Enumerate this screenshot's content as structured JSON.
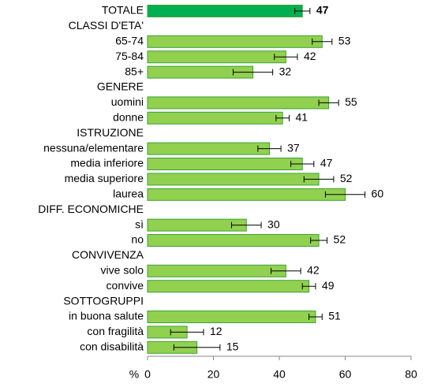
{
  "chart_data": {
    "type": "hbar",
    "categories": [
      "TOTALE",
      "CLASSI D'ETA'",
      "65-74",
      "75-84",
      "85+",
      "GENERE",
      "uomini",
      "donne",
      "ISTRUZIONE",
      "nessuna/elementare",
      "media inferiore",
      "media superiore",
      "laurea",
      "DIFF. ECONOMICHE",
      "sì",
      "no",
      "CONVIVENZA",
      "vive solo",
      "convive",
      "SOTTOGRUPPI",
      "in buona salute",
      "con fragilità",
      "con disabilità"
    ],
    "values": [
      47,
      null,
      53,
      42,
      32,
      null,
      55,
      41,
      null,
      37,
      47,
      52,
      60,
      null,
      30,
      52,
      null,
      42,
      49,
      null,
      51,
      12,
      15
    ],
    "errors": [
      2.3,
      null,
      3,
      3.5,
      6,
      null,
      3,
      2,
      null,
      3.5,
      3.5,
      4.5,
      6,
      null,
      4.5,
      2.5,
      null,
      4.5,
      2,
      null,
      2,
      5,
      7
    ],
    "colors": [
      "#00b050",
      null,
      "#92d050",
      "#92d050",
      "#92d050",
      null,
      "#92d050",
      "#92d050",
      null,
      "#92d050",
      "#92d050",
      "#92d050",
      "#92d050",
      null,
      "#92d050",
      "#92d050",
      null,
      "#92d050",
      "#92d050",
      null,
      "#92d050",
      "#92d050",
      "#92d050"
    ],
    "xlabel": "%",
    "xlim": [
      0,
      80
    ],
    "xticks": [
      0,
      20,
      40,
      60,
      80
    ]
  }
}
